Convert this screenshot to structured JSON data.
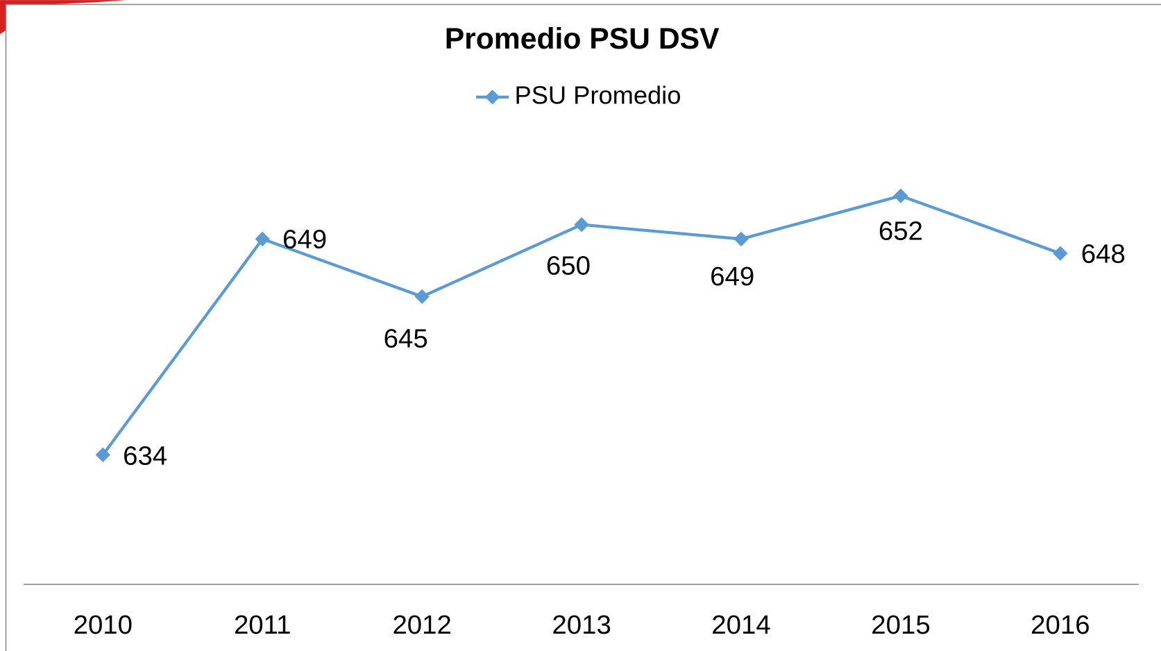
{
  "chart_data": {
    "type": "line",
    "title": "Promedio PSU DSV",
    "categories": [
      "2010",
      "2011",
      "2012",
      "2013",
      "2014",
      "2015",
      "2016"
    ],
    "series": [
      {
        "name": "PSU Promedio",
        "color": "#5b9bd5",
        "values": [
          634,
          649,
          645,
          650,
          649,
          652,
          648
        ]
      }
    ],
    "ylim": [
      625,
      660
    ],
    "legend": "top"
  }
}
